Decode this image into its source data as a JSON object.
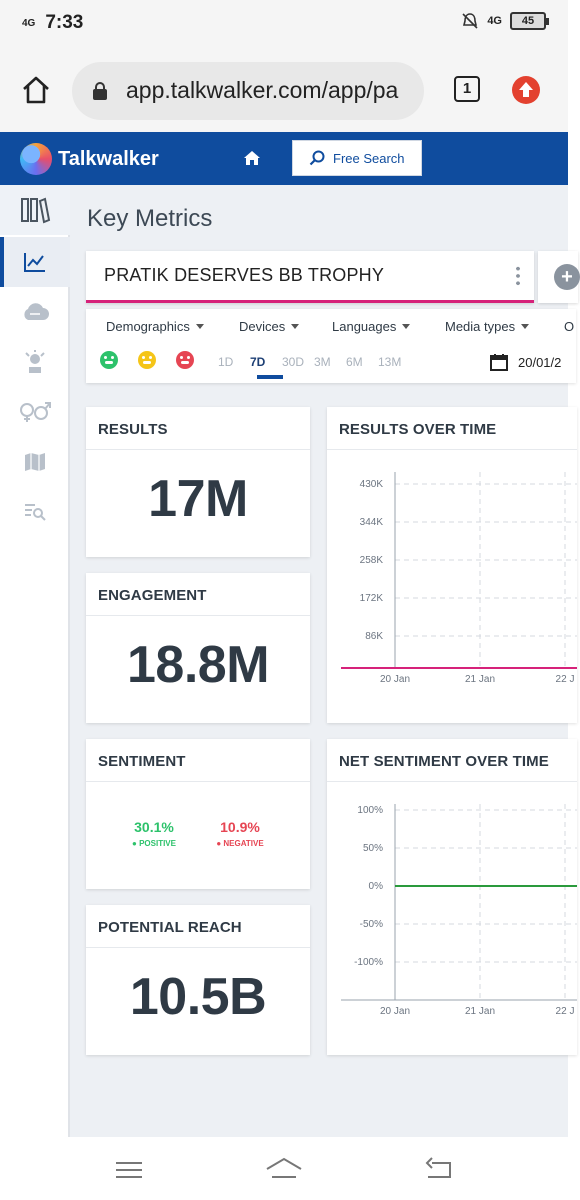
{
  "status": {
    "time": "7:33",
    "signal_left": "4G",
    "signal_right": "4G",
    "battery": "45"
  },
  "browser": {
    "url": "app.talkwalker.com/app/pa",
    "tab_count": "1"
  },
  "header": {
    "logo_text": "Talkwalker",
    "free_search_label": "Free Search"
  },
  "sidebar": {
    "items": [
      "library",
      "key-metrics",
      "cloud",
      "influencers",
      "demographics",
      "map",
      "search-list"
    ],
    "selected": "key-metrics"
  },
  "page": {
    "title": "Key Metrics"
  },
  "query": {
    "title": "PRATIK DESERVES BB TROPHY"
  },
  "filters": {
    "dropdowns": [
      "Demographics",
      "Devices",
      "Languages",
      "Media types",
      "O"
    ],
    "ranges": [
      "1D",
      "7D",
      "30D",
      "3M",
      "6M",
      "13M"
    ],
    "selected_range": "7D",
    "date": "20/01/2"
  },
  "cards": {
    "results": {
      "title": "RESULTS",
      "value": "17M"
    },
    "engagement": {
      "title": "ENGAGEMENT",
      "value": "18.8M"
    },
    "sentiment": {
      "title": "SENTIMENT",
      "positive_value": "30.1%",
      "positive_label": "POSITIVE",
      "negative_value": "10.9%",
      "negative_label": "NEGATIVE",
      "positive_color": "#2dc26b",
      "negative_color": "#e64553"
    },
    "reach": {
      "title": "POTENTIAL REACH",
      "value": "10.5B"
    },
    "results_over_time": {
      "title": "RESULTS OVER TIME"
    },
    "net_sentiment_over_time": {
      "title": "NET SENTIMENT OVER TIME"
    }
  },
  "chart_data": [
    {
      "type": "line",
      "title": "RESULTS OVER TIME",
      "x": [
        "20 Jan",
        "21 Jan",
        "22 J"
      ],
      "y_ticks": [
        "430K",
        "344K",
        "258K",
        "172K",
        "86K"
      ],
      "ylim": [
        0,
        430000
      ],
      "series": [
        {
          "values": [
            0,
            0,
            0
          ],
          "color": "#d6227a"
        }
      ],
      "grid": true
    },
    {
      "type": "line",
      "title": "NET SENTIMENT OVER TIME",
      "x": [
        "20 Jan",
        "21 Jan",
        "22 J"
      ],
      "y_ticks": [
        "100%",
        "50%",
        "0%",
        "-50%",
        "-100%"
      ],
      "ylim": [
        -100,
        100
      ],
      "series": [
        {
          "values": [
            0,
            0,
            0
          ],
          "color": "#2a9a3c"
        }
      ],
      "grid": true
    }
  ],
  "colors": {
    "brand": "#0f4c9e",
    "accent": "#d6227a"
  }
}
